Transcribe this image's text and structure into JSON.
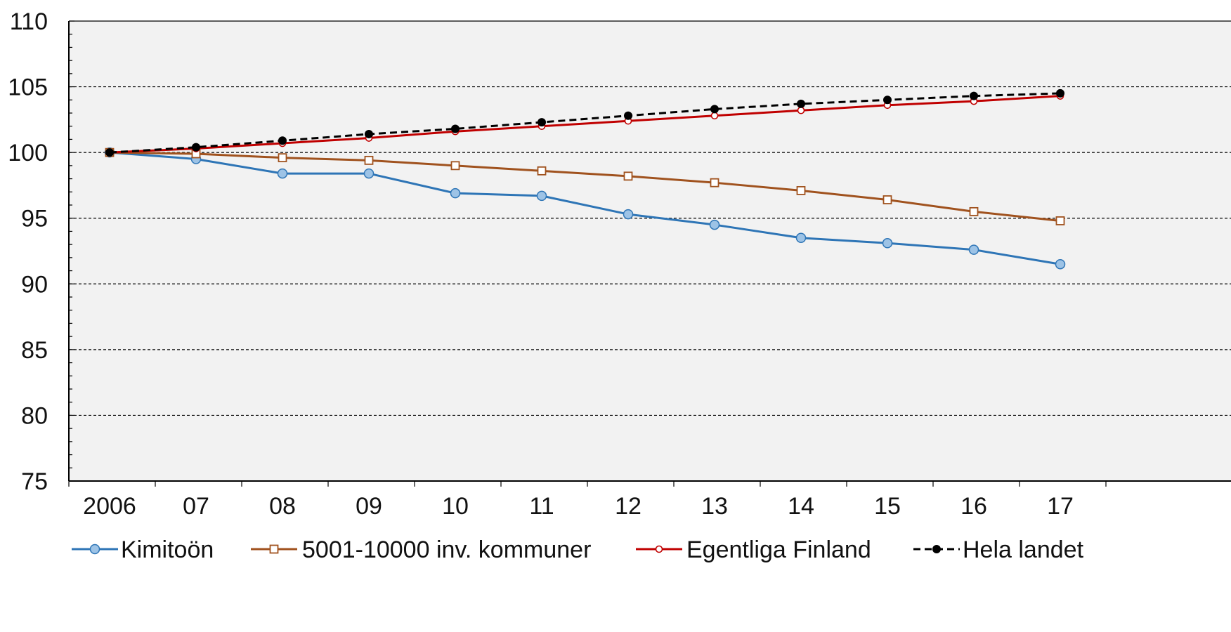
{
  "chart_data": {
    "type": "line",
    "title": "",
    "xlabel": "",
    "ylabel": "",
    "categories": [
      "2006",
      "07",
      "08",
      "09",
      "10",
      "11",
      "12",
      "13",
      "14",
      "15",
      "16",
      "17"
    ],
    "ylim": [
      75,
      110
    ],
    "yticks": [
      75,
      80,
      85,
      90,
      95,
      100,
      105,
      110
    ],
    "grid": "horizontal dashed at 80-105",
    "legend_position": "bottom",
    "series": [
      {
        "name": "Kimitoön",
        "color": "#2e75b6",
        "marker_fill": "#9dc3e6",
        "marker": "circle",
        "dashed": false,
        "values": [
          100.0,
          99.5,
          98.4,
          98.4,
          96.9,
          96.7,
          95.3,
          94.5,
          93.5,
          93.1,
          92.6,
          91.5
        ]
      },
      {
        "name": "5001-10000 inv. kommuner",
        "color": "#a0521e",
        "marker_fill": "#ffffff",
        "marker": "square",
        "dashed": false,
        "values": [
          100.0,
          99.9,
          99.6,
          99.4,
          99.0,
          98.6,
          98.2,
          97.7,
          97.1,
          96.4,
          95.5,
          94.8
        ]
      },
      {
        "name": "Egentliga Finland",
        "color": "#c00000",
        "marker_fill": "#ffffff",
        "marker": "circle-small",
        "dashed": false,
        "values": [
          100.0,
          100.3,
          100.7,
          101.1,
          101.6,
          102.0,
          102.4,
          102.8,
          103.2,
          103.6,
          103.9,
          104.3
        ]
      },
      {
        "name": "Hela landet",
        "color": "#000000",
        "marker_fill": "#000000",
        "marker": "dot",
        "dashed": true,
        "values": [
          100.0,
          100.4,
          100.9,
          101.4,
          101.8,
          102.3,
          102.8,
          103.3,
          103.7,
          104.0,
          104.3,
          104.5
        ]
      }
    ]
  }
}
